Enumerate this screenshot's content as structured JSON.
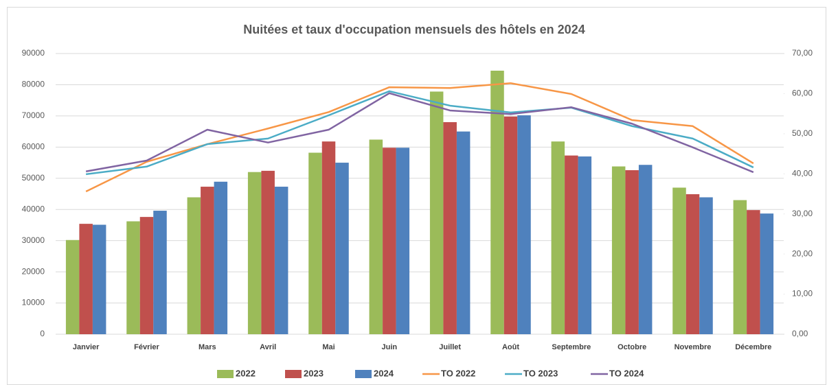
{
  "chart_data": {
    "type": "bar",
    "title": "Nuitées et taux d'occupation mensuels des hôtels en 2024",
    "categories": [
      "Janvier",
      "Février",
      "Mars",
      "Avril",
      "Mai",
      "Juin",
      "Juillet",
      "Août",
      "Septembre",
      "Octobre",
      "Novembre",
      "Décembre"
    ],
    "series": [
      {
        "name": "2022",
        "type": "bar",
        "color": "#9bbb59",
        "values": [
          30200,
          36200,
          43900,
          52000,
          58200,
          62400,
          77800,
          84500,
          61800,
          53800,
          47000,
          43000
        ]
      },
      {
        "name": "2023",
        "type": "bar",
        "color": "#c0504d",
        "values": [
          35400,
          37600,
          47300,
          52400,
          61800,
          59800,
          68000,
          69800,
          57300,
          52600,
          44900,
          39800
        ]
      },
      {
        "name": "2024",
        "type": "bar",
        "color": "#4f81bd",
        "values": [
          35100,
          39600,
          48900,
          47300,
          55000,
          59800,
          65000,
          70200,
          57000,
          54300,
          43900,
          38700
        ]
      },
      {
        "name": "TO 2022",
        "type": "line",
        "axis": "y2",
        "color": "#f79646",
        "values": [
          35.6,
          43.0,
          47.4,
          51.3,
          55.4,
          61.6,
          61.4,
          62.6,
          59.9,
          53.4,
          51.9,
          42.6
        ]
      },
      {
        "name": "TO 2023",
        "type": "line",
        "axis": "y2",
        "color": "#4bacc6",
        "values": [
          39.9,
          41.8,
          47.4,
          48.8,
          54.6,
          60.6,
          57.0,
          55.3,
          56.5,
          51.9,
          48.8,
          41.6
        ]
      },
      {
        "name": "TO 2024",
        "type": "line",
        "axis": "y2",
        "color": "#8064a2",
        "values": [
          40.6,
          43.3,
          51.0,
          47.8,
          51.0,
          60.1,
          55.8,
          54.9,
          56.6,
          52.5,
          46.6,
          40.4
        ]
      }
    ],
    "ylim": [
      0,
      90000
    ],
    "yticks": [
      0,
      10000,
      20000,
      30000,
      40000,
      50000,
      60000,
      70000,
      80000,
      90000
    ],
    "y2lim": [
      0,
      70
    ],
    "y2ticks": [
      {
        "value": 0,
        "label": "0,00"
      },
      {
        "value": 10,
        "label": "10,00"
      },
      {
        "value": 20,
        "label": "20,00"
      },
      {
        "value": 30,
        "label": "30,00"
      },
      {
        "value": 40,
        "label": "40,00"
      },
      {
        "value": 50,
        "label": "50,00"
      },
      {
        "value": 60,
        "label": "60,00"
      },
      {
        "value": 70,
        "label": "70,00"
      }
    ],
    "grid": true,
    "legend": "bottom"
  }
}
